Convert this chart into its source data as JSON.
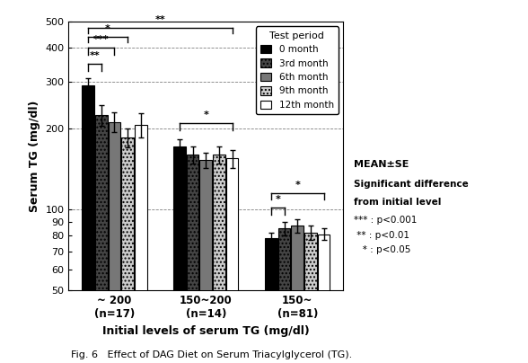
{
  "groups": [
    "~ 200\n(n=17)",
    "150~200\n(n=14)",
    "150~\n(n=81)"
  ],
  "months": [
    "0 month",
    "3rd month",
    "6th month",
    "9th month",
    "12th month"
  ],
  "values": [
    [
      290,
      225,
      212,
      185,
      207
    ],
    [
      172,
      160,
      153,
      160,
      155
    ],
    [
      78,
      85,
      87,
      82,
      81
    ]
  ],
  "errors": [
    [
      18,
      20,
      18,
      15,
      22
    ],
    [
      10,
      12,
      10,
      12,
      12
    ],
    [
      4,
      5,
      5,
      5,
      4
    ]
  ],
  "bar_colors": [
    "#000000",
    "#444444",
    "#777777",
    "#cccccc",
    "#ffffff"
  ],
  "bar_hatches": [
    null,
    "....",
    null,
    "....",
    null
  ],
  "bar_edgecolors": [
    "#000000",
    "#000000",
    "#000000",
    "#000000",
    "#000000"
  ],
  "ylabel": "Serum TG (mg/dl)",
  "xlabel": "Initial levels of serum TG (mg/dl)",
  "ymin": 50,
  "ymax": 500,
  "yticks": [
    50,
    60,
    70,
    80,
    90,
    100,
    200,
    300,
    400,
    500
  ],
  "ytick_labels": [
    "50",
    "60",
    "70",
    "80",
    "90",
    "100",
    "200",
    "300",
    "400",
    "500"
  ],
  "fig_caption": "Fig. 6   Effect of DAG Diet on Serum Triacylglycerol (TG).",
  "legend_title": "Test period"
}
